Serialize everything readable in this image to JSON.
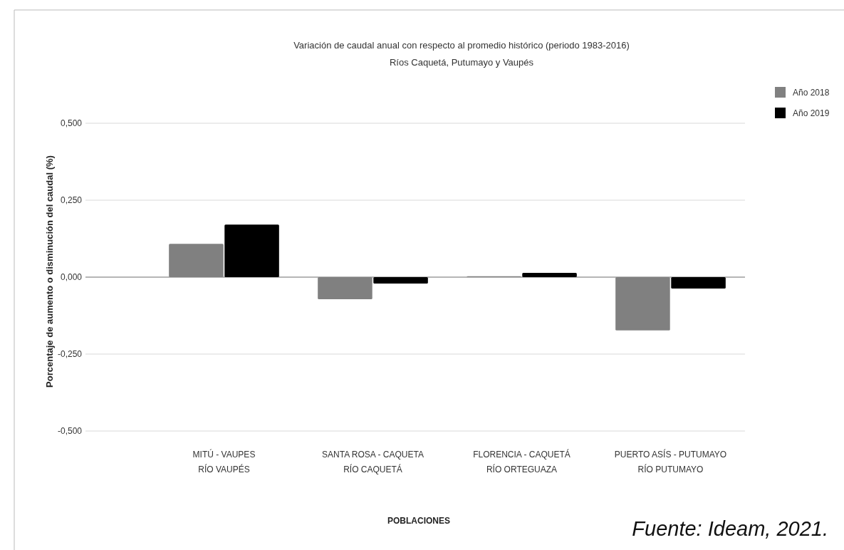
{
  "chart_data": {
    "type": "bar",
    "title": "Variación de caudal anual con respecto al promedio histórico (periodo 1983-2016)",
    "subtitle": "Ríos Caquetá, Putumayo y Vaupés",
    "xlabel": "POBLACIONES",
    "ylabel": "Porcentaje de aumento o disminución del caudal (%)",
    "categories": [
      "MITÚ - VAUPES\nRÍO VAUPÉS",
      "SANTA ROSA - CAQUETA\nRÍO CAQUETÁ",
      "FLORENCIA - CAQUETÁ\nRÍO ORTEGUAZA",
      "PUERTO ASÍS - PUTUMAYO\nRÍO PUTUMAYO"
    ],
    "series": [
      {
        "name": "Año 2018",
        "color": "#808080",
        "values": [
          0.108,
          -0.072,
          0.003,
          -0.173
        ]
      },
      {
        "name": "Año 2019",
        "color": "#000000",
        "values": [
          0.171,
          -0.021,
          0.014,
          -0.037
        ]
      }
    ],
    "ylim": [
      -0.5,
      0.5
    ],
    "yticks": [
      {
        "value": -0.5,
        "label": "-0,500"
      },
      {
        "value": -0.25,
        "label": "-0,250"
      },
      {
        "value": 0,
        "label": "0,000"
      },
      {
        "value": 0.25,
        "label": "0,250"
      },
      {
        "value": 0.5,
        "label": "0,500"
      }
    ],
    "grid": "y",
    "legend": "top right",
    "annotations": [
      "Fuente: Ideam, 2021."
    ]
  }
}
